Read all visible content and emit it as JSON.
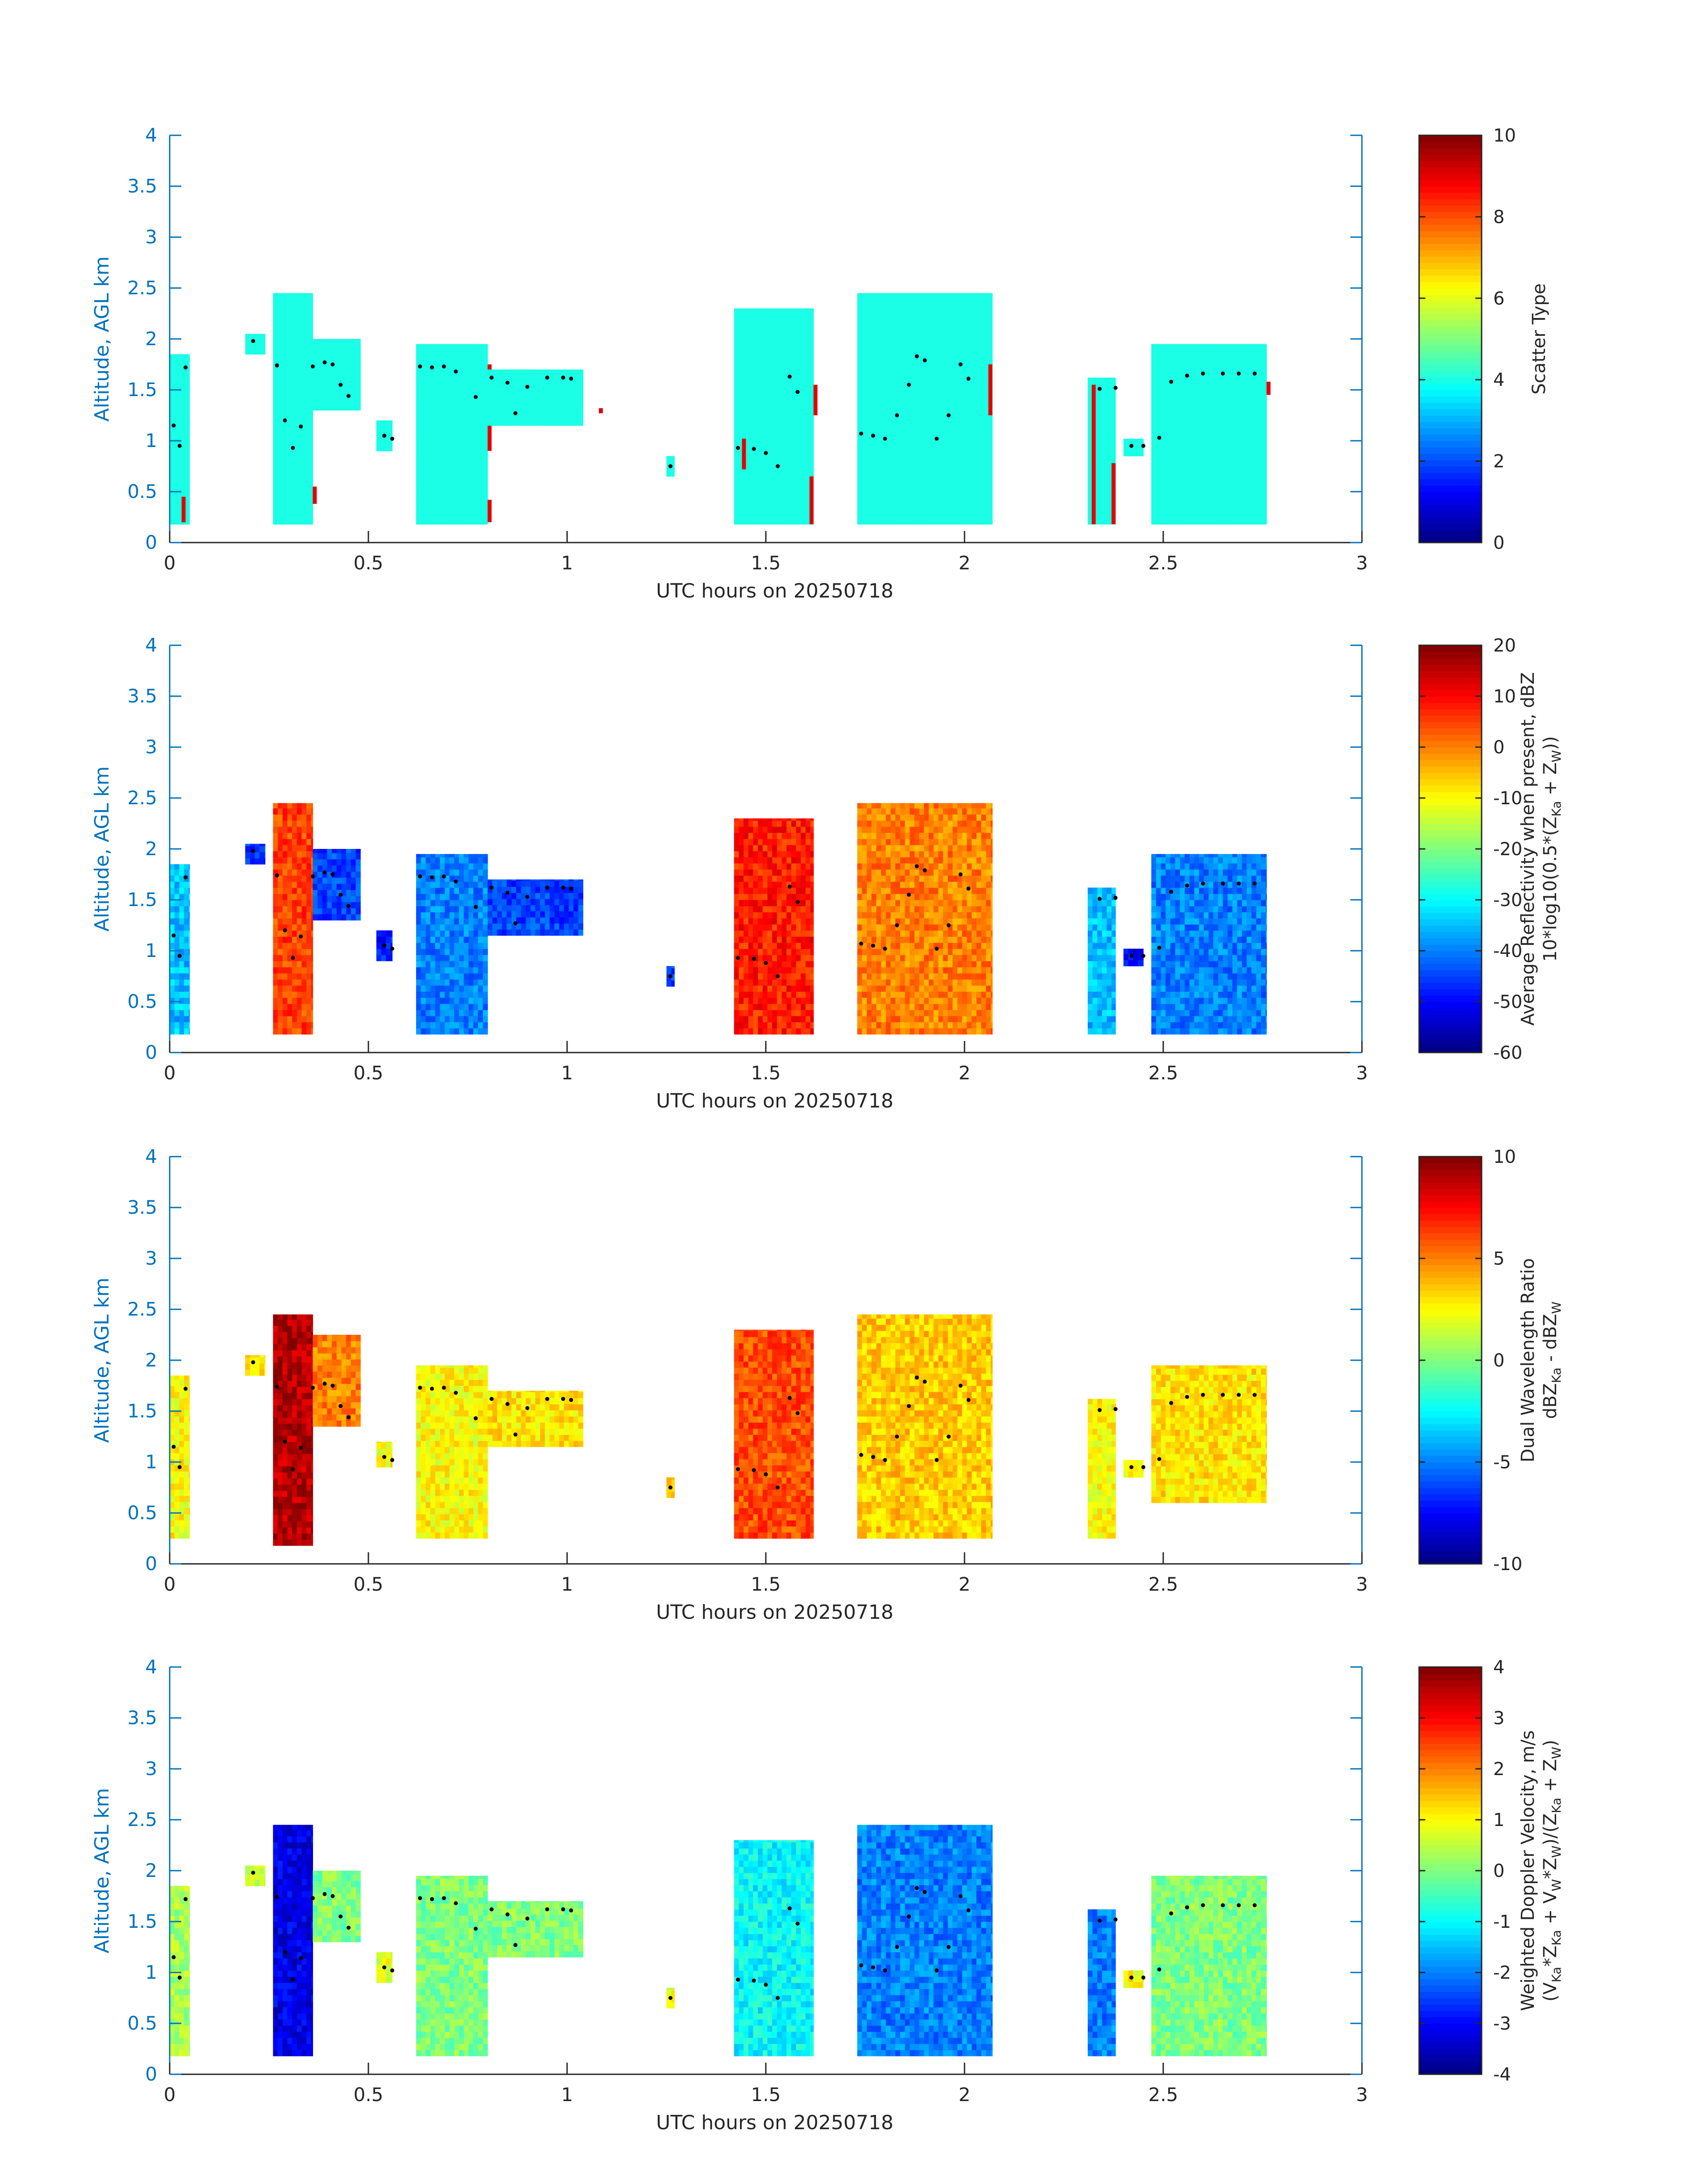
{
  "figure": {
    "date_label": "20250718"
  },
  "chart_data": [
    {
      "type": "heatmap",
      "xlabel": "UTC hours on 20250718",
      "ylabel": "Altitude, AGL km",
      "xlim": [
        0,
        3
      ],
      "ylim": [
        0,
        4
      ],
      "xticks": [
        "0",
        "0.5",
        "1",
        "1.5",
        "2",
        "2.5",
        "3"
      ],
      "yticks": [
        "0",
        "0.5",
        "1",
        "1.5",
        "2",
        "2.5",
        "3",
        "3.5",
        "4"
      ],
      "colorbar": {
        "label_lines": [
          "Scatter Type"
        ],
        "clim": [
          0,
          10
        ],
        "ticks": [
          "0",
          "2",
          "4",
          "6",
          "8",
          "10"
        ],
        "colormap": "jet"
      },
      "cloud_segments": [
        {
          "t0": 0.0,
          "t1": 0.05,
          "z0": 0.18,
          "z1": 1.85,
          "value": 4,
          "secondary": [
            {
              "t": 0.03,
              "z0": 0.2,
              "z1": 0.45,
              "value": 9
            }
          ]
        },
        {
          "t0": 0.19,
          "t1": 0.24,
          "z0": 1.85,
          "z1": 2.05,
          "value": 4
        },
        {
          "t0": 0.26,
          "t1": 0.36,
          "z0": 0.18,
          "z1": 2.45,
          "value": 4,
          "secondary": [
            {
              "t": 0.36,
              "z0": 0.38,
              "z1": 0.55,
              "value": 9
            }
          ]
        },
        {
          "t0": 0.36,
          "t1": 0.48,
          "z0": 1.3,
          "z1": 2.0,
          "value": 4
        },
        {
          "t0": 0.52,
          "t1": 0.56,
          "z0": 0.9,
          "z1": 1.2,
          "value": 4
        },
        {
          "t0": 0.62,
          "t1": 0.8,
          "z0": 0.18,
          "z1": 1.95,
          "value": 4,
          "secondary": [
            {
              "t": 0.8,
              "z0": 0.9,
              "z1": 1.75,
              "value": 9
            },
            {
              "t": 0.8,
              "z0": 0.2,
              "z1": 0.42,
              "value": 9
            }
          ]
        },
        {
          "t0": 0.8,
          "t1": 1.04,
          "z0": 1.15,
          "z1": 1.7,
          "value": 4,
          "secondary": [
            {
              "t": 1.08,
              "z0": 1.27,
              "z1": 1.32,
              "value": 9
            }
          ]
        },
        {
          "t0": 1.25,
          "t1": 1.27,
          "z0": 0.65,
          "z1": 0.85,
          "value": 4
        },
        {
          "t0": 1.42,
          "t1": 1.62,
          "z0": 0.18,
          "z1": 2.3,
          "value": 4,
          "secondary": [
            {
              "t": 1.44,
              "z0": 0.72,
              "z1": 1.02,
              "value": 9
            },
            {
              "t": 1.62,
              "z0": 1.25,
              "z1": 1.55,
              "value": 9
            },
            {
              "t": 1.61,
              "z0": 0.18,
              "z1": 0.65,
              "value": 9
            }
          ]
        },
        {
          "t0": 1.73,
          "t1": 2.07,
          "z0": 0.18,
          "z1": 2.45,
          "value": 4,
          "secondary": [
            {
              "t": 2.06,
              "z0": 1.25,
              "z1": 1.75,
              "value": 9
            }
          ]
        },
        {
          "t0": 2.31,
          "t1": 2.38,
          "z0": 0.18,
          "z1": 1.62,
          "value": 4,
          "secondary": [
            {
              "t": 2.32,
              "z0": 0.18,
              "z1": 1.55,
              "value": 9
            },
            {
              "t": 2.37,
              "z0": 0.18,
              "z1": 0.78,
              "value": 9
            }
          ]
        },
        {
          "t0": 2.4,
          "t1": 2.45,
          "z0": 0.85,
          "z1": 1.02,
          "value": 4
        },
        {
          "t0": 2.47,
          "t1": 2.76,
          "z0": 0.18,
          "z1": 1.95,
          "value": 4,
          "secondary": [
            {
              "t": 2.76,
              "z0": 1.45,
              "z1": 1.58,
              "value": 9
            }
          ]
        }
      ],
      "markers": [
        [
          0.01,
          1.15
        ],
        [
          0.025,
          0.95
        ],
        [
          0.04,
          1.72
        ],
        [
          0.21,
          1.98
        ],
        [
          0.27,
          1.74
        ],
        [
          0.29,
          1.2
        ],
        [
          0.31,
          0.93
        ],
        [
          0.33,
          1.14
        ],
        [
          0.36,
          1.73
        ],
        [
          0.39,
          1.77
        ],
        [
          0.41,
          1.75
        ],
        [
          0.43,
          1.55
        ],
        [
          0.45,
          1.44
        ],
        [
          0.54,
          1.05
        ],
        [
          0.56,
          1.02
        ],
        [
          0.63,
          1.73
        ],
        [
          0.66,
          1.72
        ],
        [
          0.69,
          1.73
        ],
        [
          0.72,
          1.68
        ],
        [
          0.77,
          1.43
        ],
        [
          0.81,
          1.62
        ],
        [
          0.85,
          1.57
        ],
        [
          0.87,
          1.27
        ],
        [
          0.9,
          1.53
        ],
        [
          0.95,
          1.62
        ],
        [
          0.99,
          1.62
        ],
        [
          1.01,
          1.61
        ],
        [
          1.26,
          0.75
        ],
        [
          1.43,
          0.93
        ],
        [
          1.47,
          0.92
        ],
        [
          1.5,
          0.88
        ],
        [
          1.53,
          0.75
        ],
        [
          1.56,
          1.63
        ],
        [
          1.58,
          1.48
        ],
        [
          1.74,
          1.07
        ],
        [
          1.77,
          1.05
        ],
        [
          1.8,
          1.02
        ],
        [
          1.83,
          1.25
        ],
        [
          1.86,
          1.55
        ],
        [
          1.88,
          1.83
        ],
        [
          1.9,
          1.79
        ],
        [
          1.93,
          1.02
        ],
        [
          1.96,
          1.25
        ],
        [
          1.99,
          1.75
        ],
        [
          2.01,
          1.61
        ],
        [
          2.34,
          1.51
        ],
        [
          2.38,
          1.52
        ],
        [
          2.42,
          0.95
        ],
        [
          2.45,
          0.95
        ],
        [
          2.49,
          1.03
        ],
        [
          2.52,
          1.58
        ],
        [
          2.56,
          1.64
        ],
        [
          2.6,
          1.66
        ],
        [
          2.65,
          1.66
        ],
        [
          2.69,
          1.66
        ],
        [
          2.73,
          1.66
        ]
      ]
    },
    {
      "type": "heatmap",
      "xlabel": "UTC hours on 20250718",
      "ylabel": "Altitude, AGL km",
      "xlim": [
        0,
        3
      ],
      "ylim": [
        0,
        4
      ],
      "xticks": [
        "0",
        "0.5",
        "1",
        "1.5",
        "2",
        "2.5",
        "3"
      ],
      "yticks": [
        "0",
        "0.5",
        "1",
        "1.5",
        "2",
        "2.5",
        "3",
        "3.5",
        "4"
      ],
      "colorbar": {
        "label_lines": [
          "Average Reflectivity when present, dBZ",
          "10*log10(0.5*(Z<sub>Ka</sub> + Z<sub>W</sub>))"
        ],
        "clim": [
          -60,
          20
        ],
        "ticks": [
          "-60",
          "-50",
          "-40",
          "-30",
          "-20",
          "-10",
          "0",
          "10",
          "20"
        ],
        "colormap": "jet"
      },
      "cloud_segments": [
        {
          "t0": 0.0,
          "t1": 0.05,
          "z0": 0.18,
          "z1": 1.85,
          "value": -35
        },
        {
          "t0": 0.19,
          "t1": 0.24,
          "z0": 1.85,
          "z1": 2.05,
          "value": -45
        },
        {
          "t0": 0.26,
          "t1": 0.36,
          "z0": 0.18,
          "z1": 2.45,
          "value": 5
        },
        {
          "t0": 0.36,
          "t1": 0.48,
          "z0": 1.3,
          "z1": 2.0,
          "value": -45
        },
        {
          "t0": 0.52,
          "t1": 0.56,
          "z0": 0.9,
          "z1": 1.2,
          "value": -48
        },
        {
          "t0": 0.62,
          "t1": 0.8,
          "z0": 0.18,
          "z1": 1.95,
          "value": -40
        },
        {
          "t0": 0.8,
          "t1": 1.04,
          "z0": 1.15,
          "z1": 1.7,
          "value": -45
        },
        {
          "t0": 1.25,
          "t1": 1.27,
          "z0": 0.65,
          "z1": 0.85,
          "value": -45
        },
        {
          "t0": 1.42,
          "t1": 1.62,
          "z0": 0.18,
          "z1": 2.3,
          "value": 8
        },
        {
          "t0": 1.73,
          "t1": 2.07,
          "z0": 0.18,
          "z1": 2.45,
          "value": 0
        },
        {
          "t0": 2.31,
          "t1": 2.38,
          "z0": 0.18,
          "z1": 1.62,
          "value": -35
        },
        {
          "t0": 2.4,
          "t1": 2.45,
          "z0": 0.85,
          "z1": 1.02,
          "value": -50
        },
        {
          "t0": 2.47,
          "t1": 2.76,
          "z0": 0.18,
          "z1": 1.95,
          "value": -40
        }
      ],
      "markers": "same as panel 1"
    },
    {
      "type": "heatmap",
      "xlabel": "UTC hours on 20250718",
      "ylabel": "Altitude, AGL km",
      "xlim": [
        0,
        3
      ],
      "ylim": [
        0,
        4
      ],
      "xticks": [
        "0",
        "0.5",
        "1",
        "1.5",
        "2",
        "2.5",
        "3"
      ],
      "yticks": [
        "0",
        "0.5",
        "1",
        "1.5",
        "2",
        "2.5",
        "3",
        "3.5",
        "4"
      ],
      "colorbar": {
        "label_lines": [
          "Dual Wavelength Ratio",
          "dBZ<sub>Ka</sub> - dBZ<sub>W</sub>"
        ],
        "clim": [
          -10,
          10
        ],
        "ticks": [
          "-10",
          "-5",
          "0",
          "5",
          "10"
        ],
        "colormap": "jet"
      },
      "cloud_segments": [
        {
          "t0": 0.0,
          "t1": 0.05,
          "z0": 0.25,
          "z1": 1.85,
          "value": 2.5
        },
        {
          "t0": 0.19,
          "t1": 0.24,
          "z0": 1.85,
          "z1": 2.05,
          "value": 3
        },
        {
          "t0": 0.26,
          "t1": 0.36,
          "z0": 0.18,
          "z1": 2.45,
          "value": 9
        },
        {
          "t0": 0.36,
          "t1": 0.48,
          "z0": 1.35,
          "z1": 2.25,
          "value": 5
        },
        {
          "t0": 0.52,
          "t1": 0.56,
          "z0": 0.95,
          "z1": 1.2,
          "value": 2.5
        },
        {
          "t0": 0.62,
          "t1": 0.8,
          "z0": 0.25,
          "z1": 1.95,
          "value": 2.5
        },
        {
          "t0": 0.8,
          "t1": 1.04,
          "z0": 1.15,
          "z1": 1.7,
          "value": 3
        },
        {
          "t0": 1.25,
          "t1": 1.27,
          "z0": 0.65,
          "z1": 0.85,
          "value": 3
        },
        {
          "t0": 1.42,
          "t1": 1.62,
          "z0": 0.25,
          "z1": 2.3,
          "value": 6
        },
        {
          "t0": 1.73,
          "t1": 2.07,
          "z0": 0.25,
          "z1": 2.45,
          "value": 3.5
        },
        {
          "t0": 2.31,
          "t1": 2.38,
          "z0": 0.25,
          "z1": 1.62,
          "value": 2.5
        },
        {
          "t0": 2.4,
          "t1": 2.45,
          "z0": 0.85,
          "z1": 1.02,
          "value": 3
        },
        {
          "t0": 2.47,
          "t1": 2.76,
          "z0": 0.6,
          "z1": 1.95,
          "value": 3
        }
      ],
      "markers": "same as panel 1"
    },
    {
      "type": "heatmap",
      "xlabel": "UTC hours on 20250718",
      "ylabel": "Altitude, AGL km",
      "xlim": [
        0,
        3
      ],
      "ylim": [
        0,
        4
      ],
      "xticks": [
        "0",
        "0.5",
        "1",
        "1.5",
        "2",
        "2.5",
        "3"
      ],
      "yticks": [
        "0",
        "0.5",
        "1",
        "1.5",
        "2",
        "2.5",
        "3",
        "3.5",
        "4"
      ],
      "colorbar": {
        "label_lines": [
          "Weighted Doppler Velocity, m/s",
          "(V<sub>Ka</sub>*Z<sub>Ka</sub> + V<sub>W</sub>*Z<sub>W</sub>)/(Z<sub>Ka</sub> + Z<sub>W</sub>)"
        ],
        "clim": [
          -4,
          4
        ],
        "ticks": [
          "-4",
          "-3",
          "-2",
          "-1",
          "0",
          "1",
          "2",
          "3",
          "4"
        ],
        "colormap": "jet"
      },
      "cloud_segments": [
        {
          "t0": 0.0,
          "t1": 0.05,
          "z0": 0.18,
          "z1": 1.85,
          "value": 0.3
        },
        {
          "t0": 0.19,
          "t1": 0.24,
          "z0": 1.85,
          "z1": 2.05,
          "value": 0.5
        },
        {
          "t0": 0.26,
          "t1": 0.36,
          "z0": 0.18,
          "z1": 2.45,
          "value": -3.2
        },
        {
          "t0": 0.36,
          "t1": 0.48,
          "z0": 1.3,
          "z1": 2.0,
          "value": 0
        },
        {
          "t0": 0.52,
          "t1": 0.56,
          "z0": 0.9,
          "z1": 1.2,
          "value": 0.8
        },
        {
          "t0": 0.62,
          "t1": 0.8,
          "z0": 0.18,
          "z1": 1.95,
          "value": 0
        },
        {
          "t0": 0.8,
          "t1": 1.04,
          "z0": 1.15,
          "z1": 1.7,
          "value": 0
        },
        {
          "t0": 1.25,
          "t1": 1.27,
          "z0": 0.65,
          "z1": 0.85,
          "value": 0.8
        },
        {
          "t0": 1.42,
          "t1": 1.62,
          "z0": 0.18,
          "z1": 2.3,
          "value": -1
        },
        {
          "t0": 1.73,
          "t1": 2.07,
          "z0": 0.18,
          "z1": 2.45,
          "value": -2
        },
        {
          "t0": 2.31,
          "t1": 2.38,
          "z0": 0.18,
          "z1": 1.62,
          "value": -2
        },
        {
          "t0": 2.4,
          "t1": 2.45,
          "z0": 0.85,
          "z1": 1.02,
          "value": 1
        },
        {
          "t0": 2.47,
          "t1": 2.76,
          "z0": 0.18,
          "z1": 1.95,
          "value": 0
        }
      ],
      "markers": "same as panel 1"
    }
  ]
}
